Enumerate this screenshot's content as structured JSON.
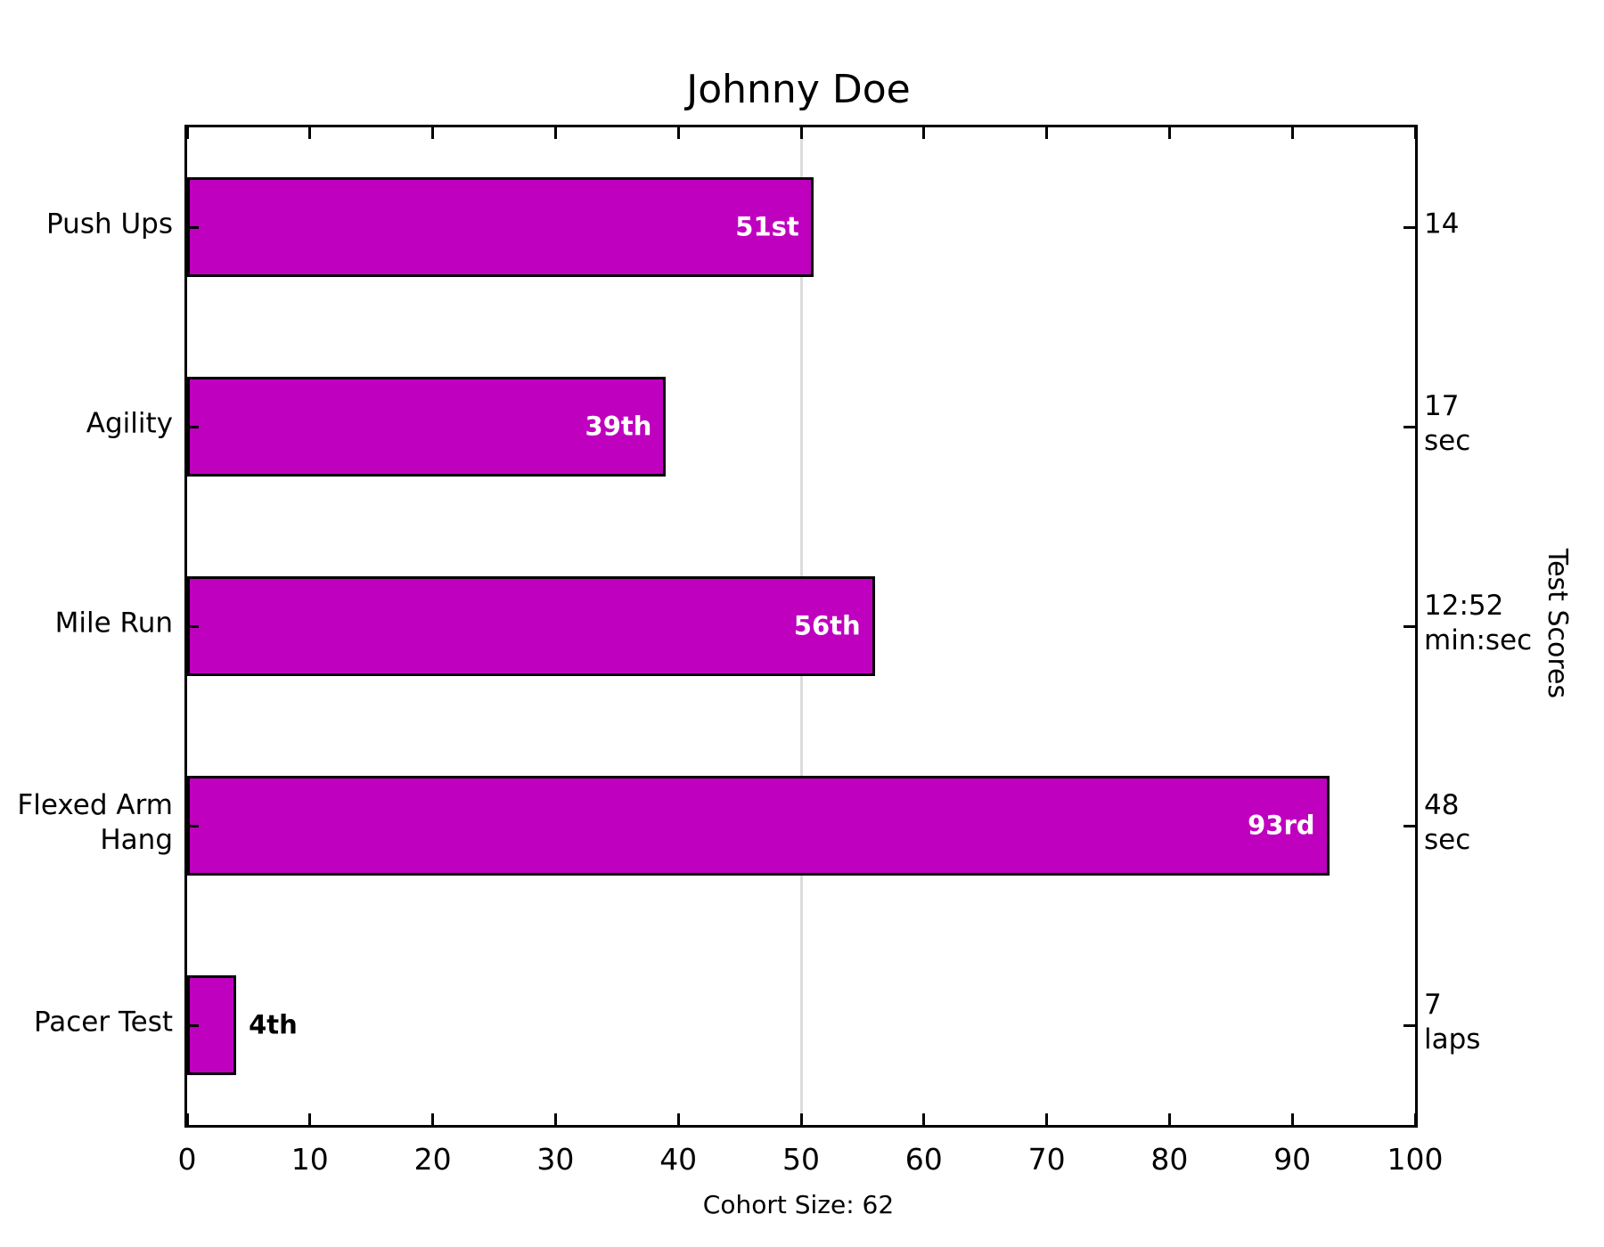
{
  "title": "Johnny Doe",
  "xlabel": "Cohort Size: 62",
  "right_axis_label": "Test Scores",
  "colors": {
    "bar_fill": "#BF00BF",
    "bar_edge": "#000000",
    "gridline": "#DCDCDC",
    "bar_label_inside": "#FFFFFF",
    "bar_label_outside": "#000000",
    "axis": "#000000",
    "background": "#FFFFFF"
  },
  "chart_data": {
    "type": "bar",
    "orientation": "horizontal",
    "title": "Johnny Doe",
    "xlabel": "Cohort Size: 62",
    "right_ylabel": "Test Scores",
    "cohort_size": 62,
    "xlim": [
      0,
      100
    ],
    "x_ticks": [
      0,
      10,
      20,
      30,
      40,
      50,
      60,
      70,
      80,
      90,
      100
    ],
    "reference_line_x": 50,
    "grid": "single light vertical reference line at x=50",
    "legend": "none",
    "categories": [
      "Push Ups",
      "Agility",
      "Mile Run",
      "Flexed Arm Hang",
      "Pacer Test"
    ],
    "category_label_lines": [
      [
        "Push Ups"
      ],
      [
        "Agility"
      ],
      [
        "Mile Run"
      ],
      [
        "Flexed Arm",
        "Hang"
      ],
      [
        "Pacer Test"
      ]
    ],
    "values": [
      51,
      39,
      56,
      93,
      4
    ],
    "bar_labels": [
      "51st",
      "39th",
      "56th",
      "93rd",
      "4th"
    ],
    "bar_label_inside": [
      true,
      true,
      true,
      true,
      false
    ],
    "score_label_lines": [
      [
        "14"
      ],
      [
        "17",
        "sec"
      ],
      [
        "12:52",
        "min:sec"
      ],
      [
        "48",
        "sec"
      ],
      [
        "7",
        "laps"
      ]
    ]
  }
}
